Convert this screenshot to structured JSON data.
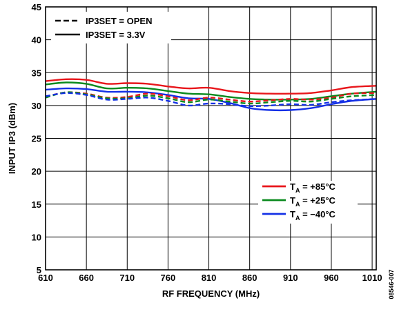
{
  "chart_data": {
    "type": "line",
    "xlabel": "RF FREQUENCY (MHz)",
    "ylabel": "INPUT IP3 (dBm)",
    "xlim": [
      610,
      1015
    ],
    "ylim": [
      5,
      45
    ],
    "x_ticks": [
      610,
      660,
      710,
      760,
      810,
      860,
      910,
      960,
      1010
    ],
    "y_ticks": [
      5,
      10,
      15,
      20,
      25,
      30,
      35,
      40,
      45
    ],
    "grid": true,
    "figure_id": "08546-007",
    "linestyle_legend": [
      {
        "label": "IP3SET = OPEN",
        "style": "dashed"
      },
      {
        "label": "IP3SET = 3.3V",
        "style": "solid"
      }
    ],
    "temp_legend": [
      {
        "label": "Tₐ = +85°C",
        "prefix": "T",
        "sub": "A",
        "suffix": " = +85°C",
        "color": "#e8161b"
      },
      {
        "label": "Tₐ = +25°C",
        "prefix": "T",
        "sub": "A",
        "suffix": " = +25°C",
        "color": "#0a8a1e"
      },
      {
        "label": "Tₐ = −40°C",
        "prefix": "T",
        "sub": "A",
        "suffix": " = −40°C",
        "color": "#1430e6"
      }
    ],
    "x": [
      610,
      635,
      660,
      685,
      710,
      735,
      760,
      785,
      810,
      835,
      860,
      885,
      910,
      935,
      960,
      985,
      1015
    ],
    "series": [
      {
        "temp": "+85°C",
        "style": "solid",
        "color": "#e8161b",
        "values": [
          33.7,
          34.0,
          33.9,
          33.3,
          33.4,
          33.3,
          32.9,
          32.6,
          32.7,
          32.2,
          31.9,
          31.8,
          31.8,
          31.9,
          32.3,
          32.8,
          33.0
        ]
      },
      {
        "temp": "+25°C",
        "style": "solid",
        "color": "#0a8a1e",
        "values": [
          33.2,
          33.5,
          33.3,
          32.6,
          32.7,
          32.6,
          32.2,
          31.8,
          31.7,
          31.3,
          31.0,
          30.9,
          30.9,
          31.0,
          31.4,
          31.8,
          32.1
        ]
      },
      {
        "temp": "−40°C",
        "style": "solid",
        "color": "#1430e6",
        "values": [
          32.4,
          32.6,
          32.5,
          32.1,
          32.1,
          32.0,
          31.6,
          31.1,
          31.0,
          30.4,
          29.6,
          29.3,
          29.3,
          29.6,
          30.2,
          30.7,
          31.0
        ]
      },
      {
        "temp": "+85°C",
        "style": "dashed",
        "color": "#e8161b",
        "values": [
          31.3,
          32.0,
          31.8,
          31.2,
          31.3,
          31.8,
          31.4,
          30.8,
          31.2,
          30.9,
          30.6,
          30.8,
          31.0,
          30.9,
          31.2,
          31.8,
          31.9
        ]
      },
      {
        "temp": "+25°C",
        "style": "dashed",
        "color": "#0a8a1e",
        "values": [
          31.2,
          32.0,
          31.7,
          31.1,
          31.1,
          31.5,
          31.1,
          30.5,
          30.9,
          30.6,
          30.3,
          30.5,
          30.7,
          30.6,
          31.0,
          31.4,
          31.6
        ]
      },
      {
        "temp": "−40°C",
        "style": "dashed",
        "color": "#1430e6",
        "values": [
          31.4,
          31.9,
          31.6,
          30.9,
          31.0,
          31.2,
          30.7,
          30.0,
          30.3,
          30.2,
          29.9,
          30.0,
          30.2,
          30.1,
          30.5,
          30.8,
          31.0
        ]
      }
    ]
  }
}
